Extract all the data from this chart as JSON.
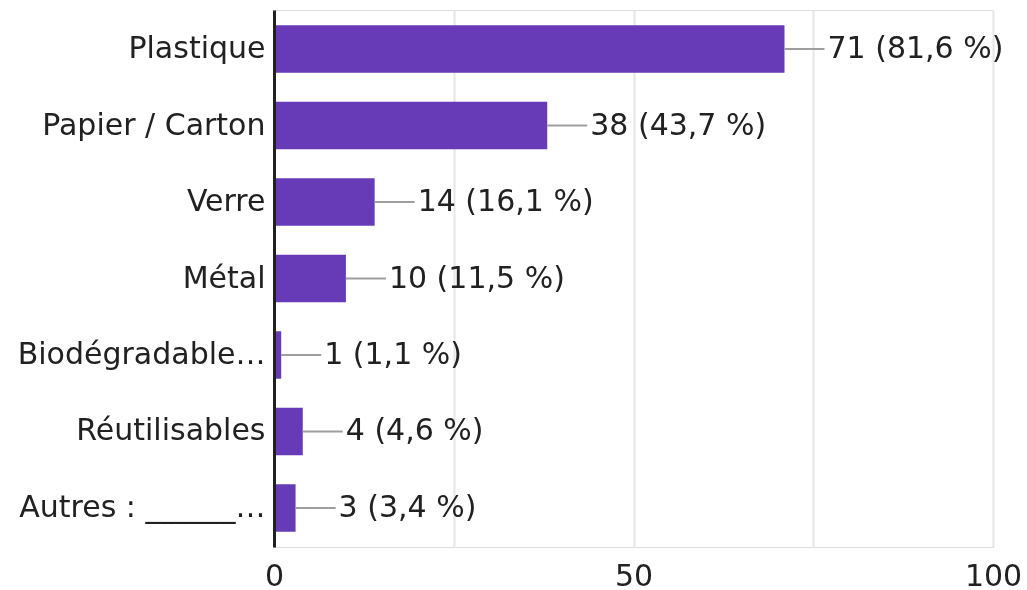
{
  "chart_data": {
    "type": "bar",
    "orientation": "horizontal",
    "categories": [
      "Plastique",
      "Papier / Carton",
      "Verre",
      "Métal",
      "Biodégradable…",
      "Réutilisables",
      "Autres : ______…"
    ],
    "values": [
      71,
      38,
      14,
      10,
      1,
      4,
      3
    ],
    "color": "#673ab7",
    "value_labels": [
      "71 (81,6 %)",
      "38 (43,7 %)",
      "14 (16,1 %)",
      "10 (11,5 %)",
      "1 (1,1 %)",
      "4 (4,6 %)",
      "3 (3,4 %)"
    ],
    "xlim": [
      0,
      100
    ],
    "xticks": [
      0,
      {
        "value": 25,
        "label": null
      },
      50,
      {
        "value": 75,
        "label": null
      },
      100
    ],
    "grid": "x"
  }
}
